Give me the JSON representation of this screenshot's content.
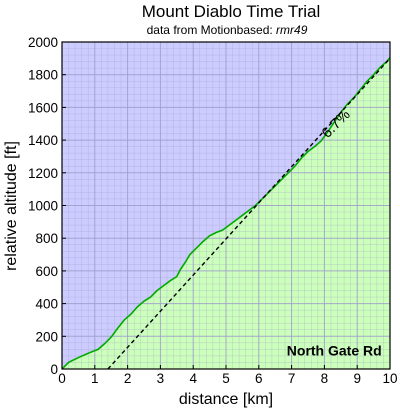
{
  "chart_data": {
    "type": "area",
    "title": "Mount Diablo Time Trial",
    "subtitle_prefix": "data from Motionbased: ",
    "subtitle_user": "rmr49",
    "xlabel": "distance [km]",
    "ylabel": "relative altitude [ft]",
    "xlim": [
      0,
      10
    ],
    "ylim": [
      0,
      2000
    ],
    "xticks": [
      0,
      1,
      2,
      3,
      4,
      5,
      6,
      7,
      8,
      9,
      10
    ],
    "yticks": [
      0,
      200,
      400,
      600,
      800,
      1000,
      1200,
      1400,
      1600,
      1800,
      2000
    ],
    "grid": true,
    "series": [
      {
        "name": "",
        "x": [
          0,
          0.2,
          0.5,
          0.9,
          1.1,
          1.3,
          1.5,
          1.7,
          1.9,
          2.1,
          2.3,
          2.5,
          2.7,
          2.9,
          3.1,
          3.3,
          3.5,
          3.6,
          3.75,
          3.9,
          4.1,
          4.3,
          4.5,
          4.7,
          4.9,
          5.1,
          5.3,
          5.5,
          5.7,
          5.9,
          6.1,
          6.3,
          6.5,
          6.7,
          6.9,
          7.1,
          7.3,
          7.5,
          7.7,
          7.9,
          8.1,
          8.3,
          8.5,
          8.7,
          8.9,
          9.1,
          9.3,
          9.5,
          9.7,
          9.9,
          10.0
        ],
        "y": [
          0,
          40,
          70,
          105,
          120,
          155,
          195,
          250,
          300,
          335,
          380,
          415,
          440,
          480,
          510,
          540,
          565,
          605,
          650,
          700,
          740,
          780,
          815,
          835,
          850,
          880,
          910,
          940,
          970,
          1000,
          1040,
          1080,
          1120,
          1160,
          1200,
          1240,
          1290,
          1330,
          1360,
          1395,
          1450,
          1510,
          1570,
          1620,
          1660,
          1710,
          1760,
          1800,
          1845,
          1880,
          1905
        ],
        "color": "#ccffbb",
        "line_color": "#00aa00"
      }
    ],
    "grade_line": {
      "x": [
        1.4,
        10.0
      ],
      "y": [
        0,
        1900
      ]
    },
    "annotations": [
      {
        "text": "6.7%",
        "x": 8.45,
        "y": 1480,
        "rotate_deg": -45
      },
      {
        "text": "North Gate Rd",
        "x": 8.3,
        "y": 100
      }
    ],
    "background_color": "#ccccff",
    "grid_color": "#a0a0cc"
  }
}
